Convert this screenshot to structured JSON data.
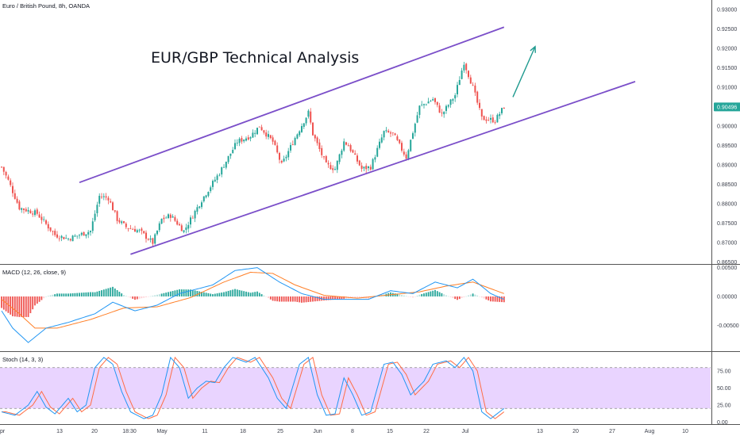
{
  "chart_data": {
    "type": "candlestick",
    "symbol_label": "Euro / British Pound, 8h, OANDA",
    "headline": "EUR/GBP Technical Analysis",
    "price_axis": {
      "ticks": [
        "0.93000",
        "0.92500",
        "0.92000",
        "0.91500",
        "0.91000",
        "0.90500",
        "0.90000",
        "0.89500",
        "0.89000",
        "0.88500",
        "0.88000",
        "0.87500",
        "0.87000",
        "0.86500"
      ],
      "ylim": [
        0.8645,
        0.9325
      ],
      "last_price": "0.90496",
      "last_price_value": 0.90496,
      "last_price_color": "#26a69a"
    },
    "x_labels": [
      "pr",
      "13",
      "20",
      "18:30",
      "May",
      "11",
      "18",
      "25",
      "Jun",
      "8",
      "15",
      "22",
      "Jul",
      "13",
      "20",
      "27",
      "Aug",
      "10"
    ],
    "colors": {
      "up": "#26a69a",
      "down": "#ef5350",
      "channel": "#7b4fc9",
      "arrow": "#1f9a8f",
      "macd_line": "#2196f3",
      "signal_line": "#ff7f27",
      "stoch_k": "#2196f3",
      "stoch_d": "#ff6d45",
      "stoch_band": "#e5ccff"
    },
    "price_anchors": [
      {
        "t": 0,
        "v": 0.8895
      },
      {
        "t": 3,
        "v": 0.886
      },
      {
        "t": 8,
        "v": 0.879
      },
      {
        "t": 16,
        "v": 0.8775
      },
      {
        "t": 24,
        "v": 0.872
      },
      {
        "t": 30,
        "v": 0.871
      },
      {
        "t": 40,
        "v": 0.873
      },
      {
        "t": 44,
        "v": 0.882
      },
      {
        "t": 48,
        "v": 0.8815
      },
      {
        "t": 52,
        "v": 0.876
      },
      {
        "t": 56,
        "v": 0.874
      },
      {
        "t": 62,
        "v": 0.873
      },
      {
        "t": 68,
        "v": 0.87
      },
      {
        "t": 72,
        "v": 0.876
      },
      {
        "t": 76,
        "v": 0.877
      },
      {
        "t": 82,
        "v": 0.873
      },
      {
        "t": 90,
        "v": 0.881
      },
      {
        "t": 98,
        "v": 0.888
      },
      {
        "t": 106,
        "v": 0.896
      },
      {
        "t": 112,
        "v": 0.8975
      },
      {
        "t": 116,
        "v": 0.9
      },
      {
        "t": 122,
        "v": 0.896
      },
      {
        "t": 126,
        "v": 0.89
      },
      {
        "t": 132,
        "v": 0.897
      },
      {
        "t": 138,
        "v": 0.9035
      },
      {
        "t": 140,
        "v": 0.898
      },
      {
        "t": 146,
        "v": 0.89
      },
      {
        "t": 150,
        "v": 0.889
      },
      {
        "t": 154,
        "v": 0.896
      },
      {
        "t": 156,
        "v": 0.895
      },
      {
        "t": 162,
        "v": 0.889
      },
      {
        "t": 166,
        "v": 0.8895
      },
      {
        "t": 172,
        "v": 0.8985
      },
      {
        "t": 176,
        "v": 0.898
      },
      {
        "t": 182,
        "v": 0.892
      },
      {
        "t": 188,
        "v": 0.905
      },
      {
        "t": 194,
        "v": 0.907
      },
      {
        "t": 198,
        "v": 0.903
      },
      {
        "t": 204,
        "v": 0.908
      },
      {
        "t": 208,
        "v": 0.9165
      },
      {
        "t": 212,
        "v": 0.91
      },
      {
        "t": 216,
        "v": 0.902
      },
      {
        "t": 222,
        "v": 0.9015
      },
      {
        "t": 226,
        "v": 0.905
      }
    ],
    "channel": {
      "upper": {
        "from": [
          35,
          0.8855
        ],
        "to": [
          226,
          0.9255
        ]
      },
      "lower": {
        "from": [
          58,
          0.867
        ],
        "to": [
          285,
          0.9115
        ]
      }
    },
    "arrow": {
      "from": [
        230,
        0.9075
      ],
      "to": [
        240,
        0.9205
      ]
    },
    "macd": {
      "label": "MACD (12, 26, close, 9)",
      "ticks": [
        "0.00500",
        "0.00000",
        "-0.00500"
      ],
      "ylim": [
        -0.0095,
        0.0055
      ],
      "macd_anchors": [
        {
          "t": 0,
          "v": -0.0025
        },
        {
          "t": 5,
          "v": -0.0055
        },
        {
          "t": 12,
          "v": -0.008
        },
        {
          "t": 20,
          "v": -0.0055
        },
        {
          "t": 30,
          "v": -0.0045
        },
        {
          "t": 42,
          "v": -0.003
        },
        {
          "t": 50,
          "v": -0.001
        },
        {
          "t": 60,
          "v": -0.0025
        },
        {
          "t": 70,
          "v": -0.0015
        },
        {
          "t": 80,
          "v": 0.0005
        },
        {
          "t": 95,
          "v": 0.002
        },
        {
          "t": 105,
          "v": 0.0045
        },
        {
          "t": 115,
          "v": 0.005
        },
        {
          "t": 125,
          "v": 0.0025
        },
        {
          "t": 135,
          "v": 0.0005
        },
        {
          "t": 145,
          "v": -0.0005
        },
        {
          "t": 155,
          "v": -0.0005
        },
        {
          "t": 165,
          "v": -0.0005
        },
        {
          "t": 175,
          "v": 0.001
        },
        {
          "t": 185,
          "v": 0.0005
        },
        {
          "t": 195,
          "v": 0.0025
        },
        {
          "t": 205,
          "v": 0.0015
        },
        {
          "t": 212,
          "v": 0.003
        },
        {
          "t": 220,
          "v": 0.0005
        },
        {
          "t": 226,
          "v": -0.0005
        }
      ],
      "signal_anchors": [
        {
          "t": 0,
          "v": -0.0005
        },
        {
          "t": 8,
          "v": -0.003
        },
        {
          "t": 15,
          "v": -0.0055
        },
        {
          "t": 25,
          "v": -0.0055
        },
        {
          "t": 40,
          "v": -0.004
        },
        {
          "t": 55,
          "v": -0.002
        },
        {
          "t": 70,
          "v": -0.0018
        },
        {
          "t": 85,
          "v": -0.0002
        },
        {
          "t": 100,
          "v": 0.0025
        },
        {
          "t": 112,
          "v": 0.0042
        },
        {
          "t": 122,
          "v": 0.004
        },
        {
          "t": 132,
          "v": 0.002
        },
        {
          "t": 145,
          "v": 0.0002
        },
        {
          "t": 160,
          "v": -0.0003
        },
        {
          "t": 175,
          "v": 0.0003
        },
        {
          "t": 188,
          "v": 0.0008
        },
        {
          "t": 200,
          "v": 0.0018
        },
        {
          "t": 212,
          "v": 0.0025
        },
        {
          "t": 226,
          "v": 0.0005
        }
      ]
    },
    "stoch": {
      "label": "Stoch (14, 3, 3)",
      "ticks": [
        "75.00",
        "50.00",
        "25.00",
        "0.00"
      ],
      "ylim": [
        -3,
        103
      ],
      "band": [
        20,
        80
      ],
      "k_anchors": [
        {
          "t": 0,
          "v": 15
        },
        {
          "t": 6,
          "v": 10
        },
        {
          "t": 12,
          "v": 25
        },
        {
          "t": 16,
          "v": 45
        },
        {
          "t": 20,
          "v": 22
        },
        {
          "t": 24,
          "v": 12
        },
        {
          "t": 30,
          "v": 35
        },
        {
          "t": 34,
          "v": 15
        },
        {
          "t": 38,
          "v": 25
        },
        {
          "t": 42,
          "v": 80
        },
        {
          "t": 46,
          "v": 95
        },
        {
          "t": 50,
          "v": 85
        },
        {
          "t": 54,
          "v": 45
        },
        {
          "t": 58,
          "v": 15
        },
        {
          "t": 64,
          "v": 5
        },
        {
          "t": 68,
          "v": 10
        },
        {
          "t": 72,
          "v": 40
        },
        {
          "t": 76,
          "v": 95
        },
        {
          "t": 80,
          "v": 80
        },
        {
          "t": 84,
          "v": 35
        },
        {
          "t": 88,
          "v": 50
        },
        {
          "t": 92,
          "v": 60
        },
        {
          "t": 96,
          "v": 58
        },
        {
          "t": 100,
          "v": 80
        },
        {
          "t": 104,
          "v": 95
        },
        {
          "t": 110,
          "v": 88
        },
        {
          "t": 114,
          "v": 95
        },
        {
          "t": 120,
          "v": 65
        },
        {
          "t": 124,
          "v": 35
        },
        {
          "t": 128,
          "v": 20
        },
        {
          "t": 134,
          "v": 85
        },
        {
          "t": 138,
          "v": 95
        },
        {
          "t": 142,
          "v": 40
        },
        {
          "t": 146,
          "v": 10
        },
        {
          "t": 150,
          "v": 12
        },
        {
          "t": 154,
          "v": 65
        },
        {
          "t": 158,
          "v": 40
        },
        {
          "t": 162,
          "v": 10
        },
        {
          "t": 166,
          "v": 15
        },
        {
          "t": 172,
          "v": 85
        },
        {
          "t": 176,
          "v": 88
        },
        {
          "t": 180,
          "v": 70
        },
        {
          "t": 184,
          "v": 40
        },
        {
          "t": 190,
          "v": 60
        },
        {
          "t": 194,
          "v": 85
        },
        {
          "t": 200,
          "v": 90
        },
        {
          "t": 204,
          "v": 80
        },
        {
          "t": 208,
          "v": 95
        },
        {
          "t": 212,
          "v": 75
        },
        {
          "t": 216,
          "v": 15
        },
        {
          "t": 220,
          "v": 5
        },
        {
          "t": 226,
          "v": 20
        }
      ]
    }
  }
}
